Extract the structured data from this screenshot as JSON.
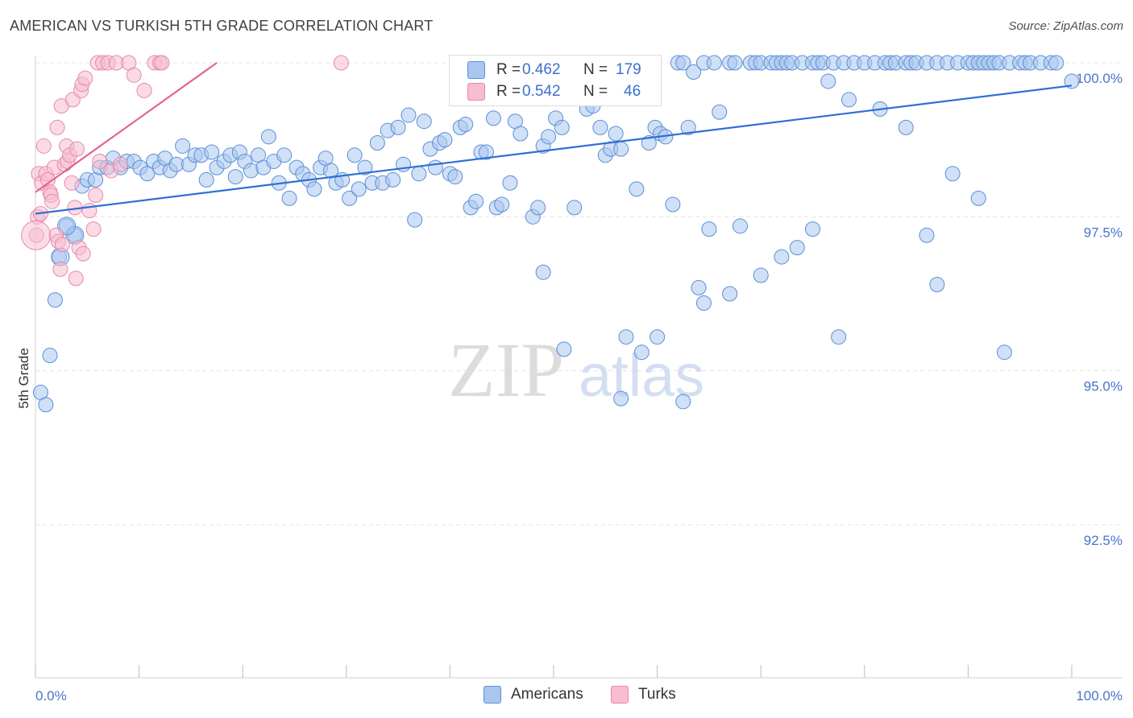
{
  "title": "AMERICAN VS TURKISH 5TH GRADE CORRELATION CHART",
  "source": "Source: ZipAtlas.com",
  "watermark": {
    "zip": "ZIP",
    "atlas": "atlas"
  },
  "legend": {
    "rows": [
      {
        "name": "Americans",
        "r_label": "R =",
        "r_value": "0.462",
        "n_label": "N =",
        "n_value": "179",
        "color": "#a9c6ef",
        "edge": "#5b8fd6"
      },
      {
        "name": "Turks",
        "r_label": "R =",
        "r_value": "0.542",
        "n_label": "N =",
        "n_value": "46",
        "color": "#f7bcd0",
        "edge": "#e58aa8"
      }
    ]
  },
  "chart_data": {
    "type": "scatter",
    "xlabel": "",
    "ylabel": "5th Grade",
    "xlim": [
      0,
      100
    ],
    "ylim": [
      90.4,
      100.2
    ],
    "y_ticks": [
      {
        "value": 100.0,
        "label": "100.0%"
      },
      {
        "value": 97.5,
        "label": "97.5%"
      },
      {
        "value": 95.0,
        "label": "95.0%"
      },
      {
        "value": 92.5,
        "label": "92.5%"
      }
    ],
    "x_tick_labels": {
      "min": "0.0%",
      "max": "100.0%"
    },
    "x_minor_ticks": [
      0,
      10,
      20,
      30,
      40,
      50,
      60,
      70,
      80,
      90,
      100
    ],
    "series": [
      {
        "name": "Americans",
        "color": "#a9c6ef",
        "edge": "#5b8fd6",
        "trend": {
          "color": "#2f6fd6",
          "x": [
            0,
            100
          ],
          "y": [
            97.55,
            99.63
          ]
        },
        "points": [
          [
            0.5,
            94.65
          ],
          [
            1.0,
            94.45
          ],
          [
            1.4,
            95.25
          ],
          [
            1.9,
            96.15
          ],
          [
            2.3,
            96.85
          ],
          [
            3.0,
            97.35
          ],
          [
            3.8,
            97.2
          ],
          [
            4.5,
            98.0
          ],
          [
            5.0,
            98.1
          ],
          [
            5.8,
            98.1
          ],
          [
            6.2,
            98.3
          ],
          [
            6.9,
            98.3
          ],
          [
            7.5,
            98.45
          ],
          [
            8.2,
            98.3
          ],
          [
            8.8,
            98.4
          ],
          [
            9.5,
            98.4
          ],
          [
            10.1,
            98.3
          ],
          [
            10.8,
            98.2
          ],
          [
            11.4,
            98.4
          ],
          [
            12.0,
            98.3
          ],
          [
            12.5,
            98.45
          ],
          [
            13.0,
            98.25
          ],
          [
            13.6,
            98.35
          ],
          [
            14.2,
            98.65
          ],
          [
            14.8,
            98.35
          ],
          [
            15.4,
            98.5
          ],
          [
            16.0,
            98.5
          ],
          [
            16.5,
            98.1
          ],
          [
            17.0,
            98.55
          ],
          [
            17.5,
            98.3
          ],
          [
            18.2,
            98.4
          ],
          [
            18.8,
            98.5
          ],
          [
            19.3,
            98.15
          ],
          [
            19.7,
            98.55
          ],
          [
            20.2,
            98.4
          ],
          [
            20.8,
            98.25
          ],
          [
            21.5,
            98.5
          ],
          [
            22.0,
            98.3
          ],
          [
            22.5,
            98.8
          ],
          [
            23.0,
            98.4
          ],
          [
            23.5,
            98.05
          ],
          [
            24.0,
            98.5
          ],
          [
            24.5,
            97.8
          ],
          [
            25.2,
            98.3
          ],
          [
            25.8,
            98.2
          ],
          [
            26.4,
            98.1
          ],
          [
            26.9,
            97.95
          ],
          [
            27.5,
            98.3
          ],
          [
            28.0,
            98.45
          ],
          [
            28.5,
            98.25
          ],
          [
            29.0,
            98.05
          ],
          [
            29.6,
            98.1
          ],
          [
            30.3,
            97.8
          ],
          [
            30.8,
            98.5
          ],
          [
            31.2,
            97.95
          ],
          [
            31.8,
            98.3
          ],
          [
            32.5,
            98.05
          ],
          [
            33.0,
            98.7
          ],
          [
            33.5,
            98.05
          ],
          [
            34.0,
            98.9
          ],
          [
            34.5,
            98.1
          ],
          [
            35.0,
            98.95
          ],
          [
            35.5,
            98.35
          ],
          [
            36.0,
            99.15
          ],
          [
            36.6,
            97.45
          ],
          [
            37.0,
            98.2
          ],
          [
            37.5,
            99.05
          ],
          [
            38.1,
            98.6
          ],
          [
            38.6,
            98.3
          ],
          [
            39.0,
            98.7
          ],
          [
            39.5,
            98.75
          ],
          [
            40.0,
            98.2
          ],
          [
            40.5,
            98.15
          ],
          [
            41.0,
            98.95
          ],
          [
            41.5,
            99.0
          ],
          [
            42.0,
            97.65
          ],
          [
            42.5,
            97.75
          ],
          [
            43.0,
            98.55
          ],
          [
            43.5,
            98.55
          ],
          [
            44.2,
            99.1
          ],
          [
            44.5,
            97.65
          ],
          [
            45.0,
            97.7
          ],
          [
            45.8,
            98.05
          ],
          [
            46.3,
            99.05
          ],
          [
            46.8,
            98.85
          ],
          [
            47.5,
            99.55
          ],
          [
            48.0,
            97.5
          ],
          [
            48.5,
            97.65
          ],
          [
            49.0,
            98.65
          ],
          [
            49.5,
            98.8
          ],
          [
            50.2,
            99.1
          ],
          [
            50.8,
            98.95
          ],
          [
            51.3,
            99.7
          ],
          [
            52.0,
            97.65
          ],
          [
            52.5,
            99.45
          ],
          [
            53.2,
            99.25
          ],
          [
            53.8,
            99.3
          ],
          [
            54.5,
            98.95
          ],
          [
            55.0,
            98.5
          ],
          [
            55.5,
            98.6
          ],
          [
            56.0,
            98.85
          ],
          [
            56.5,
            98.6
          ],
          [
            58.0,
            97.95
          ],
          [
            59.2,
            98.7
          ],
          [
            59.8,
            98.95
          ],
          [
            60.3,
            98.85
          ],
          [
            60.8,
            98.8
          ],
          [
            61.5,
            97.7
          ],
          [
            62.0,
            100.0
          ],
          [
            62.5,
            100.0
          ],
          [
            63.0,
            98.95
          ],
          [
            63.5,
            99.85
          ],
          [
            64.5,
            100.0
          ],
          [
            65.0,
            97.3
          ],
          [
            65.5,
            100.0
          ],
          [
            66.0,
            99.2
          ],
          [
            67.0,
            100.0
          ],
          [
            67.5,
            100.0
          ],
          [
            68.0,
            97.35
          ],
          [
            69.0,
            100.0
          ],
          [
            69.5,
            100.0
          ],
          [
            70.0,
            100.0
          ],
          [
            71.0,
            100.0
          ],
          [
            71.5,
            100.0
          ],
          [
            72.0,
            100.0
          ],
          [
            72.5,
            100.0
          ],
          [
            73.0,
            100.0
          ],
          [
            74.0,
            100.0
          ],
          [
            75.0,
            100.0
          ],
          [
            75.5,
            100.0
          ],
          [
            76.0,
            100.0
          ],
          [
            76.5,
            99.7
          ],
          [
            77.0,
            100.0
          ],
          [
            78.0,
            100.0
          ],
          [
            78.5,
            99.4
          ],
          [
            79.0,
            100.0
          ],
          [
            80.0,
            100.0
          ],
          [
            81.0,
            100.0
          ],
          [
            82.0,
            100.0
          ],
          [
            82.5,
            100.0
          ],
          [
            83.0,
            100.0
          ],
          [
            84.0,
            100.0
          ],
          [
            84.5,
            100.0
          ],
          [
            85.0,
            100.0
          ],
          [
            86.0,
            100.0
          ],
          [
            87.0,
            100.0
          ],
          [
            88.0,
            100.0
          ],
          [
            89.0,
            100.0
          ],
          [
            90.0,
            100.0
          ],
          [
            90.5,
            100.0
          ],
          [
            91.0,
            100.0
          ],
          [
            91.5,
            100.0
          ],
          [
            92.0,
            100.0
          ],
          [
            92.5,
            100.0
          ],
          [
            93.0,
            100.0
          ],
          [
            94.0,
            100.0
          ],
          [
            95.0,
            100.0
          ],
          [
            95.5,
            100.0
          ],
          [
            96.0,
            100.0
          ],
          [
            97.0,
            100.0
          ],
          [
            98.0,
            100.0
          ],
          [
            98.5,
            100.0
          ],
          [
            100.0,
            99.7
          ],
          [
            56.5,
            94.55
          ],
          [
            57.0,
            95.55
          ],
          [
            58.5,
            95.3
          ],
          [
            60.0,
            95.55
          ],
          [
            62.5,
            94.5
          ],
          [
            49.0,
            96.6
          ],
          [
            51.0,
            95.35
          ],
          [
            64.0,
            96.35
          ],
          [
            64.5,
            96.1
          ],
          [
            67.0,
            96.25
          ],
          [
            70.0,
            96.55
          ],
          [
            72.0,
            96.85
          ],
          [
            73.5,
            97.0
          ],
          [
            75.0,
            97.3
          ],
          [
            77.5,
            95.55
          ],
          [
            86.0,
            97.2
          ],
          [
            93.5,
            95.3
          ],
          [
            88.5,
            98.2
          ],
          [
            84.0,
            98.95
          ],
          [
            81.5,
            99.25
          ],
          [
            87.0,
            96.4
          ],
          [
            91.0,
            97.8
          ]
        ]
      },
      {
        "name": "Turks",
        "color": "#f7bcd0",
        "edge": "#e58aa8",
        "trend": {
          "color": "#e2648f",
          "x": [
            0,
            17.5
          ],
          "y": [
            97.9,
            100.0
          ]
        },
        "points": [
          [
            0.1,
            97.2
          ],
          [
            0.2,
            97.5
          ],
          [
            0.3,
            98.2
          ],
          [
            0.5,
            97.55
          ],
          [
            0.6,
            98.05
          ],
          [
            0.8,
            98.65
          ],
          [
            1.0,
            98.2
          ],
          [
            1.2,
            98.1
          ],
          [
            1.4,
            97.9
          ],
          [
            1.5,
            97.85
          ],
          [
            1.6,
            97.75
          ],
          [
            1.8,
            98.3
          ],
          [
            2.0,
            97.2
          ],
          [
            2.1,
            98.95
          ],
          [
            2.2,
            97.1
          ],
          [
            2.4,
            96.65
          ],
          [
            2.5,
            99.3
          ],
          [
            2.6,
            97.05
          ],
          [
            2.8,
            98.35
          ],
          [
            3.0,
            98.65
          ],
          [
            3.1,
            98.4
          ],
          [
            3.3,
            98.5
          ],
          [
            3.5,
            98.05
          ],
          [
            3.6,
            99.4
          ],
          [
            3.8,
            97.65
          ],
          [
            3.9,
            96.5
          ],
          [
            4.0,
            98.6
          ],
          [
            4.2,
            97.0
          ],
          [
            4.4,
            99.55
          ],
          [
            4.5,
            99.65
          ],
          [
            4.6,
            96.9
          ],
          [
            4.8,
            99.75
          ],
          [
            5.2,
            97.6
          ],
          [
            5.6,
            97.3
          ],
          [
            5.8,
            97.85
          ],
          [
            6.0,
            100.0
          ],
          [
            6.2,
            98.4
          ],
          [
            6.5,
            100.0
          ],
          [
            7.0,
            100.0
          ],
          [
            7.3,
            98.25
          ],
          [
            7.8,
            100.0
          ],
          [
            8.2,
            98.35
          ],
          [
            9.0,
            100.0
          ],
          [
            9.5,
            99.8
          ],
          [
            10.5,
            99.55
          ],
          [
            11.5,
            100.0
          ],
          [
            12.0,
            100.0
          ],
          [
            12.2,
            100.0
          ],
          [
            29.5,
            100.0
          ]
        ]
      }
    ]
  }
}
